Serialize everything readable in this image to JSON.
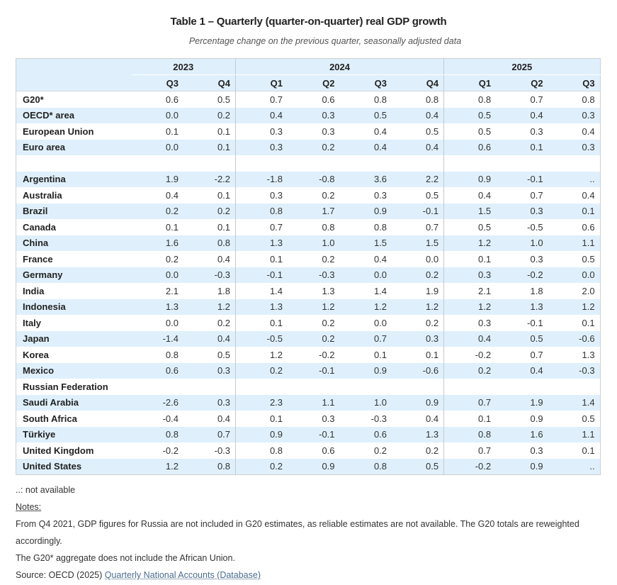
{
  "title": "Table 1 – Quarterly (quarter-on-quarter) real GDP growth",
  "subtitle": "Percentage change on the previous quarter, seasonally adjusted data",
  "table": {
    "years": [
      "2023",
      "2024",
      "2025"
    ],
    "quarters": [
      "Q3",
      "Q4",
      "Q1",
      "Q2",
      "Q3",
      "Q4",
      "Q1",
      "Q2",
      "Q3"
    ],
    "rows": [
      {
        "label": "G20*",
        "values": [
          "0.6",
          "0.5",
          "0.7",
          "0.6",
          "0.8",
          "0.8",
          "0.8",
          "0.7",
          "0.8"
        ]
      },
      {
        "label": "OECD* area",
        "values": [
          "0.0",
          "0.2",
          "0.4",
          "0.3",
          "0.5",
          "0.4",
          "0.5",
          "0.4",
          "0.3"
        ]
      },
      {
        "label": "European Union",
        "values": [
          "0.1",
          "0.1",
          "0.3",
          "0.3",
          "0.4",
          "0.5",
          "0.5",
          "0.3",
          "0.4"
        ]
      },
      {
        "label": "Euro area",
        "values": [
          "0.0",
          "0.1",
          "0.3",
          "0.2",
          "0.4",
          "0.4",
          "0.6",
          "0.1",
          "0.3"
        ]
      },
      {
        "label": "",
        "values": [
          "",
          "",
          "",
          "",
          "",
          "",
          "",
          "",
          ""
        ]
      },
      {
        "label": "Argentina",
        "values": [
          "1.9",
          "-2.2",
          "-1.8",
          "-0.8",
          "3.6",
          "2.2",
          "0.9",
          "-0.1",
          ".."
        ]
      },
      {
        "label": "Australia",
        "values": [
          "0.4",
          "0.1",
          "0.3",
          "0.2",
          "0.3",
          "0.5",
          "0.4",
          "0.7",
          "0.4"
        ]
      },
      {
        "label": "Brazil",
        "values": [
          "0.2",
          "0.2",
          "0.8",
          "1.7",
          "0.9",
          "-0.1",
          "1.5",
          "0.3",
          "0.1"
        ]
      },
      {
        "label": "Canada",
        "values": [
          "0.1",
          "0.1",
          "0.7",
          "0.8",
          "0.8",
          "0.7",
          "0.5",
          "-0.5",
          "0.6"
        ]
      },
      {
        "label": "China",
        "values": [
          "1.6",
          "0.8",
          "1.3",
          "1.0",
          "1.5",
          "1.5",
          "1.2",
          "1.0",
          "1.1"
        ]
      },
      {
        "label": "France",
        "values": [
          "0.2",
          "0.4",
          "0.1",
          "0.2",
          "0.4",
          "0.0",
          "0.1",
          "0.3",
          "0.5"
        ]
      },
      {
        "label": "Germany",
        "values": [
          "0.0",
          "-0.3",
          "-0.1",
          "-0.3",
          "0.0",
          "0.2",
          "0.3",
          "-0.2",
          "0.0"
        ]
      },
      {
        "label": "India",
        "values": [
          "2.1",
          "1.8",
          "1.4",
          "1.3",
          "1.4",
          "1.9",
          "2.1",
          "1.8",
          "2.0"
        ]
      },
      {
        "label": "Indonesia",
        "values": [
          "1.3",
          "1.2",
          "1.3",
          "1.2",
          "1.2",
          "1.2",
          "1.2",
          "1.3",
          "1.2"
        ]
      },
      {
        "label": "Italy",
        "values": [
          "0.0",
          "0.2",
          "0.1",
          "0.2",
          "0.0",
          "0.2",
          "0.3",
          "-0.1",
          "0.1"
        ]
      },
      {
        "label": "Japan",
        "values": [
          "-1.4",
          "0.4",
          "-0.5",
          "0.2",
          "0.7",
          "0.3",
          "0.4",
          "0.5",
          "-0.6"
        ]
      },
      {
        "label": "Korea",
        "values": [
          "0.8",
          "0.5",
          "1.2",
          "-0.2",
          "0.1",
          "0.1",
          "-0.2",
          "0.7",
          "1.3"
        ]
      },
      {
        "label": "Mexico",
        "values": [
          "0.6",
          "0.3",
          "0.2",
          "-0.1",
          "0.9",
          "-0.6",
          "0.2",
          "0.4",
          "-0.3"
        ]
      },
      {
        "label": "Russian Federation",
        "values": [
          "",
          "",
          "",
          "",
          "",
          "",
          "",
          "",
          ""
        ]
      },
      {
        "label": "Saudi Arabia",
        "values": [
          "-2.6",
          "0.3",
          "2.3",
          "1.1",
          "1.0",
          "0.9",
          "0.7",
          "1.9",
          "1.4"
        ]
      },
      {
        "label": "South Africa",
        "values": [
          "-0.4",
          "0.4",
          "0.1",
          "0.3",
          "-0.3",
          "0.4",
          "0.1",
          "0.9",
          "0.5"
        ]
      },
      {
        "label": "Türkiye",
        "values": [
          "0.8",
          "0.7",
          "0.9",
          "-0.1",
          "0.6",
          "1.3",
          "0.8",
          "1.6",
          "1.1"
        ]
      },
      {
        "label": "United Kingdom",
        "values": [
          "-0.2",
          "-0.3",
          "0.8",
          "0.6",
          "0.2",
          "0.2",
          "0.7",
          "0.3",
          "0.1"
        ]
      },
      {
        "label": "United States",
        "values": [
          "1.2",
          "0.8",
          "0.2",
          "0.9",
          "0.8",
          "0.5",
          "-0.2",
          "0.9",
          ".."
        ]
      }
    ]
  },
  "footnotes": {
    "not_available": "..: not available",
    "notes_heading": "Notes:",
    "note_russia": "From Q4 2021, GDP figures for Russia are not included in G20 estimates, as reliable estimates are not available. The G20 totals are reweighted accordingly.",
    "note_g20": "The G20* aggregate does not include the African Union.",
    "source_prefix": "Source: OECD (2025) ",
    "source_link": "Quarterly National Accounts (Database)"
  }
}
